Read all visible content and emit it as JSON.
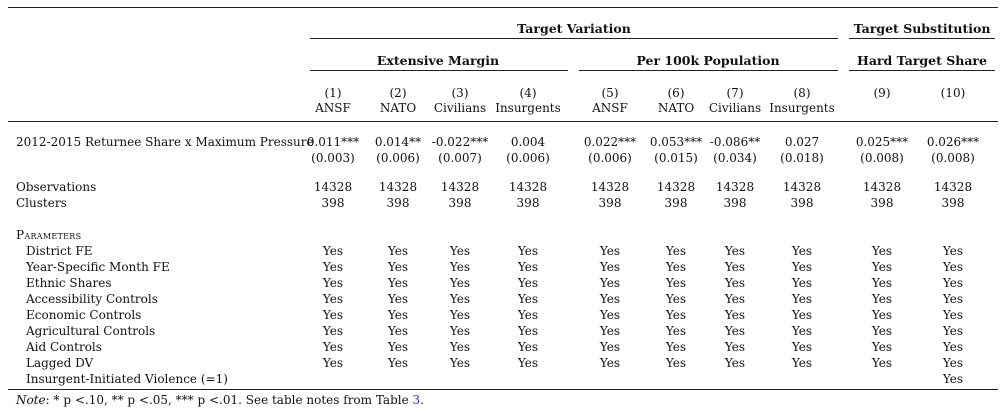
{
  "header": {
    "group1": "Target Variation",
    "group2": "Target Substitution",
    "sub1": "Extensive Margin",
    "sub2": "Per 100k Population",
    "sub3": "Hard Target Share"
  },
  "columns": [
    {
      "num": "(1)",
      "label": "ANSF"
    },
    {
      "num": "(2)",
      "label": "NATO"
    },
    {
      "num": "(3)",
      "label": "Civilians"
    },
    {
      "num": "(4)",
      "label": "Insurgents"
    },
    {
      "num": "(5)",
      "label": "ANSF"
    },
    {
      "num": "(6)",
      "label": "NATO"
    },
    {
      "num": "(7)",
      "label": "Civilians"
    },
    {
      "num": "(8)",
      "label": "Insurgents"
    },
    {
      "num": "(9)",
      "label": ""
    },
    {
      "num": "(10)",
      "label": ""
    }
  ],
  "coef_row": {
    "label": "2012-2015 Returnee Share x Maximum Pressure",
    "estimates": [
      "0.011***",
      "0.014**",
      "-0.022***",
      "0.004",
      "0.022***",
      "0.053***",
      "-0.086**",
      "0.027",
      "0.025***",
      "0.026***"
    ],
    "se": [
      "(0.003)",
      "(0.006)",
      "(0.007)",
      "(0.006)",
      "(0.006)",
      "(0.015)",
      "(0.034)",
      "(0.018)",
      "(0.008)",
      "(0.008)"
    ]
  },
  "stats": [
    {
      "label": "Observations",
      "values": [
        "14328",
        "14328",
        "14328",
        "14328",
        "14328",
        "14328",
        "14328",
        "14328",
        "14328",
        "14328"
      ]
    },
    {
      "label": "Clusters",
      "values": [
        "398",
        "398",
        "398",
        "398",
        "398",
        "398",
        "398",
        "398",
        "398",
        "398"
      ]
    }
  ],
  "parameters_title": "Parameters",
  "parameters": [
    {
      "label": "District FE",
      "values": [
        "Yes",
        "Yes",
        "Yes",
        "Yes",
        "Yes",
        "Yes",
        "Yes",
        "Yes",
        "Yes",
        "Yes"
      ]
    },
    {
      "label": "Year-Specific Month FE",
      "values": [
        "Yes",
        "Yes",
        "Yes",
        "Yes",
        "Yes",
        "Yes",
        "Yes",
        "Yes",
        "Yes",
        "Yes"
      ]
    },
    {
      "label": "Ethnic Shares",
      "values": [
        "Yes",
        "Yes",
        "Yes",
        "Yes",
        "Yes",
        "Yes",
        "Yes",
        "Yes",
        "Yes",
        "Yes"
      ]
    },
    {
      "label": "Accessibility Controls",
      "values": [
        "Yes",
        "Yes",
        "Yes",
        "Yes",
        "Yes",
        "Yes",
        "Yes",
        "Yes",
        "Yes",
        "Yes"
      ]
    },
    {
      "label": "Economic Controls",
      "values": [
        "Yes",
        "Yes",
        "Yes",
        "Yes",
        "Yes",
        "Yes",
        "Yes",
        "Yes",
        "Yes",
        "Yes"
      ]
    },
    {
      "label": "Agricultural Controls",
      "values": [
        "Yes",
        "Yes",
        "Yes",
        "Yes",
        "Yes",
        "Yes",
        "Yes",
        "Yes",
        "Yes",
        "Yes"
      ]
    },
    {
      "label": "Aid Controls",
      "values": [
        "Yes",
        "Yes",
        "Yes",
        "Yes",
        "Yes",
        "Yes",
        "Yes",
        "Yes",
        "Yes",
        "Yes"
      ]
    },
    {
      "label": "Lagged DV",
      "values": [
        "Yes",
        "Yes",
        "Yes",
        "Yes",
        "Yes",
        "Yes",
        "Yes",
        "Yes",
        "Yes",
        "Yes"
      ]
    },
    {
      "label": "Insurgent-Initiated Violence (=1)",
      "values": [
        "",
        "",
        "",
        "",
        "",
        "",
        "",
        "",
        "",
        "Yes"
      ]
    }
  ],
  "note": {
    "lead": "Note",
    "text": ": * p <.10, ** p <.05, *** p <.01. See table notes from Table ",
    "ref": "3",
    "tail": "."
  }
}
